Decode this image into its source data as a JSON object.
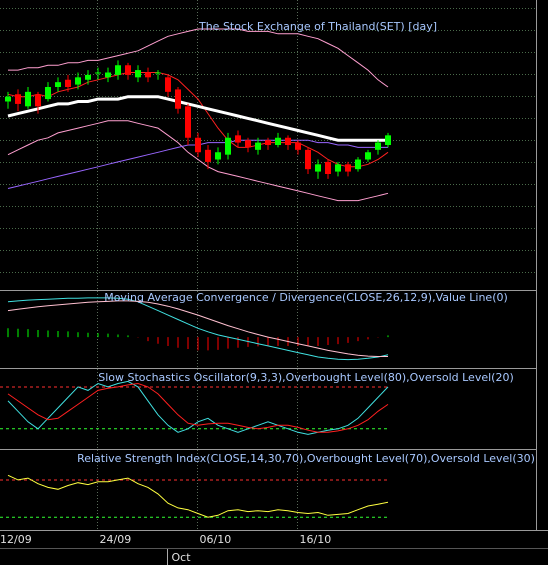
{
  "chart_data": [
    {
      "type": "candlestick",
      "title": "The Stock Exchange of Thailand(SET) [day]",
      "categories": [
        "12/09",
        null,
        null,
        null,
        null,
        null,
        null,
        null,
        null,
        null,
        "24/09",
        null,
        null,
        null,
        null,
        null,
        null,
        null,
        null,
        null,
        "06/10",
        null,
        null,
        null,
        null,
        null,
        null,
        null,
        null,
        null,
        "16/10",
        null,
        null,
        null,
        null,
        null,
        null,
        null,
        null
      ],
      "month_categories": [
        null,
        null,
        null,
        null,
        null,
        null,
        null,
        null,
        null,
        null,
        null,
        null,
        null,
        null,
        null,
        null,
        null,
        "Oct",
        null,
        null,
        null,
        null,
        null,
        null,
        null,
        null,
        null,
        null,
        null,
        null,
        null,
        null,
        null,
        null,
        null,
        null,
        null,
        null,
        null
      ],
      "open": [
        718,
        721,
        716,
        721,
        719,
        724,
        727,
        725,
        727,
        730,
        728,
        729,
        733,
        728,
        730,
        730,
        728,
        723,
        716,
        703,
        698,
        694,
        696,
        704,
        702,
        698,
        702,
        700,
        703,
        701,
        698,
        689,
        693,
        689,
        692,
        690,
        694,
        698,
        700
      ],
      "high": [
        722,
        723,
        724,
        722,
        726,
        728,
        729,
        730,
        731,
        732,
        732,
        735,
        734,
        733,
        732,
        731,
        729,
        724,
        717,
        705,
        700,
        699,
        705,
        706,
        703,
        703,
        703,
        705,
        704,
        702,
        699,
        694,
        694,
        693,
        693,
        695,
        698,
        702,
        705
      ],
      "low": [
        715,
        714,
        715,
        713,
        718,
        722,
        722,
        723,
        725,
        727,
        726,
        727,
        727,
        726,
        726,
        727,
        720,
        713,
        700,
        695,
        690,
        692,
        694,
        699,
        697,
        696,
        698,
        699,
        698,
        696,
        688,
        686,
        686,
        687,
        687,
        689,
        693,
        696,
        699
      ],
      "close": [
        720,
        717,
        722,
        716,
        724,
        726,
        724,
        728,
        729,
        730,
        730,
        733,
        729,
        731,
        728,
        730,
        722,
        715,
        703,
        697,
        693,
        697,
        703,
        701,
        699,
        701,
        700,
        703,
        700,
        698,
        690,
        692,
        688,
        692,
        689,
        694,
        697,
        701,
        704
      ],
      "up_color": "#00ff00",
      "down_color": "#ff0000",
      "ylim": [
        640,
        760
      ],
      "series": [
        {
          "color": "#ff9fd0",
          "line_width": 1,
          "values": [
            731,
            731,
            732,
            732,
            733,
            733,
            734,
            734,
            735,
            735,
            736,
            737,
            738,
            739,
            741,
            743,
            745,
            746,
            747,
            748,
            748,
            748,
            748,
            748,
            747,
            747,
            747,
            746,
            746,
            746,
            745,
            744,
            742,
            740,
            737,
            734,
            731,
            727,
            724
          ]
        },
        {
          "color": "#ff9fd0",
          "line_width": 1,
          "values": [
            696,
            698,
            700,
            702,
            703,
            705,
            706,
            707,
            708,
            709,
            710,
            710,
            710,
            709,
            708,
            707,
            704,
            701,
            697,
            694,
            691,
            689,
            688,
            687,
            686,
            685,
            684,
            683,
            682,
            681,
            680,
            679,
            678,
            677,
            677,
            677,
            678,
            679,
            680
          ]
        },
        {
          "color": "#9966ff",
          "line_width": 1,
          "values": [
            682,
            683,
            684,
            685,
            686,
            687,
            688,
            689,
            690,
            691,
            692,
            693,
            694,
            695,
            696,
            697,
            698,
            699,
            700,
            700,
            701,
            701,
            701,
            702,
            702,
            702,
            702,
            702,
            702,
            702,
            702,
            701,
            701,
            700,
            700,
            699,
            699,
            699,
            699
          ]
        },
        {
          "color": "#ff2020",
          "line_width": 1,
          "values": [
            721,
            720,
            720,
            721,
            720,
            722,
            723,
            724,
            726,
            727,
            728,
            729,
            730,
            730,
            730,
            730,
            729,
            727,
            723,
            719,
            713,
            707,
            702,
            699,
            699,
            700,
            701,
            701,
            701,
            701,
            699,
            697,
            694,
            692,
            691,
            691,
            692,
            694,
            697
          ]
        },
        {
          "color": "#ffffff",
          "line_width": 3,
          "values": [
            712,
            713,
            714,
            715,
            716,
            717,
            717,
            718,
            718,
            719,
            719,
            719,
            720,
            720,
            720,
            720,
            719,
            718,
            717,
            716,
            715,
            714,
            713,
            712,
            711,
            710,
            709,
            708,
            707,
            706,
            705,
            704,
            703,
            702,
            702,
            702,
            702,
            702,
            702
          ]
        }
      ]
    },
    {
      "type": "macd",
      "title": "Moving Average Convergence / Divergence(CLOSE,26,12,9),Value Line(0)",
      "ylim": [
        -7,
        10
      ],
      "histogram": {
        "up_color": "#00ff00",
        "down_color": "#ff0000",
        "values": [
          2,
          1.9,
          1.8,
          1.6,
          1.5,
          1.4,
          1.3,
          1.1,
          1,
          0.9,
          0.8,
          0.6,
          0.4,
          -0.1,
          -0.9,
          -1.5,
          -2,
          -2.4,
          -2.7,
          -3,
          -3,
          -2.9,
          -2.6,
          -2.4,
          -2.2,
          -2.1,
          -2,
          -2,
          -2,
          -2,
          -2,
          -2,
          -1.8,
          -1.6,
          -1.3,
          -0.9,
          -0.5,
          -0.1,
          0.4
        ]
      },
      "series": [
        {
          "color": "#40e0e0",
          "line_width": 1,
          "values": [
            8,
            8.2,
            8.4,
            8.5,
            8.6,
            8.7,
            8.8,
            8.8,
            8.9,
            8.9,
            8.9,
            8.8,
            8.6,
            8,
            7,
            6,
            5,
            4,
            3,
            2,
            1.2,
            0.5,
            0,
            -0.5,
            -1,
            -1.5,
            -2,
            -2.5,
            -3,
            -3.5,
            -4,
            -4.5,
            -4.8,
            -5,
            -5.1,
            -5,
            -4.8,
            -4.5,
            -4
          ]
        },
        {
          "color": "#ffc0d0",
          "line_width": 1,
          "values": [
            6,
            6.3,
            6.6,
            6.9,
            7.1,
            7.3,
            7.5,
            7.7,
            7.9,
            8,
            8.1,
            8.2,
            8.2,
            8.1,
            7.9,
            7.5,
            7,
            6.4,
            5.7,
            5,
            4.2,
            3.4,
            2.6,
            1.9,
            1.2,
            0.6,
            0,
            -0.5,
            -1,
            -1.5,
            -2,
            -2.5,
            -3,
            -3.4,
            -3.8,
            -4.1,
            -4.3,
            -4.4,
            -4.4
          ]
        }
      ]
    },
    {
      "type": "line",
      "title": "Slow Stochastics Oscillator(9,3,3),Overbought Level(80),Oversold Level(20)",
      "ylim": [
        -9,
        100
      ],
      "levels": [
        {
          "value": 80,
          "color": "#ff3030"
        },
        {
          "value": 20,
          "color": "#30ff30"
        }
      ],
      "series": [
        {
          "color": "#40e0e0",
          "line_width": 1,
          "values": [
            60,
            45,
            30,
            20,
            35,
            50,
            65,
            80,
            75,
            85,
            80,
            85,
            88,
            80,
            60,
            40,
            25,
            15,
            20,
            30,
            35,
            25,
            20,
            15,
            20,
            25,
            30,
            25,
            20,
            15,
            12,
            15,
            18,
            20,
            25,
            35,
            50,
            65,
            80
          ]
        },
        {
          "color": "#ff2020",
          "line_width": 1,
          "values": [
            70,
            60,
            50,
            40,
            33,
            35,
            45,
            55,
            65,
            75,
            78,
            80,
            83,
            85,
            80,
            70,
            55,
            40,
            28,
            25,
            27,
            28,
            28,
            25,
            22,
            20,
            22,
            25,
            25,
            22,
            18,
            15,
            15,
            17,
            20,
            25,
            33,
            45,
            55
          ]
        }
      ]
    },
    {
      "type": "line",
      "title": "Relative Strength Index(CLOSE,14,30,70),Overbought Level(70),Oversold Level(30)",
      "ylim": [
        -2,
        100
      ],
      "levels": [
        {
          "value": 70,
          "color": "#ff3030"
        },
        {
          "value": 30,
          "color": "#30ff30"
        }
      ],
      "series": [
        {
          "color": "#ffff40",
          "line_width": 1,
          "values": [
            75,
            70,
            72,
            66,
            62,
            60,
            64,
            67,
            65,
            68,
            68,
            70,
            72,
            66,
            62,
            55,
            45,
            40,
            38,
            34,
            30,
            32,
            37,
            38,
            36,
            37,
            36,
            38,
            37,
            35,
            34,
            35,
            32,
            33,
            34,
            38,
            42,
            44,
            46
          ]
        }
      ]
    }
  ]
}
